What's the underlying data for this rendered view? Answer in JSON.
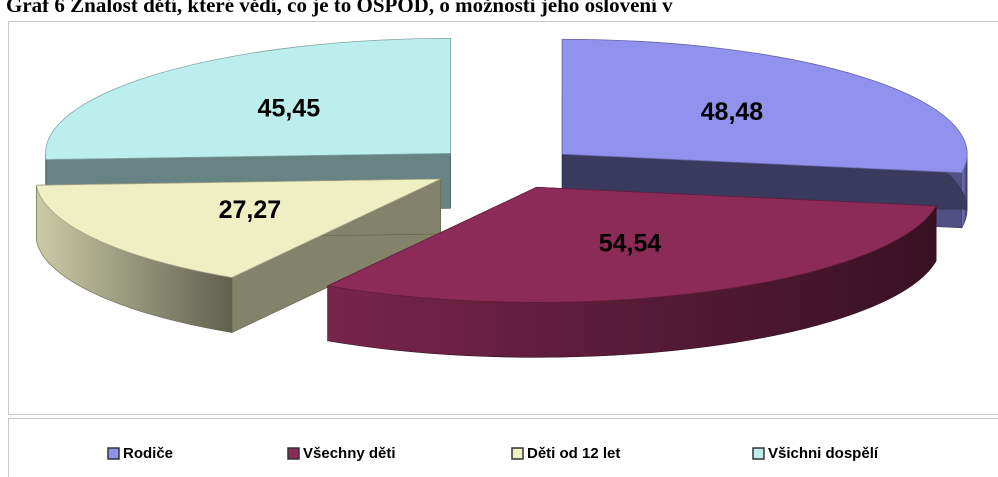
{
  "chart_data": {
    "type": "pie",
    "title": "Graf 6 Znalost dětí, které vědí, co je to OSPOD, o možnosti jeho oslovení v",
    "categories": [
      "Rodiče",
      "Všechny děti",
      "Děti od 12 let",
      "Všichni dospělí"
    ],
    "values": [
      48.48,
      54.54,
      27.27,
      45.45
    ],
    "value_labels": [
      "48,48",
      "54,54",
      "27,27",
      "45,45"
    ],
    "colors": [
      "#9191ee",
      "#8c2b57",
      "#efefc4",
      "#bdeeee"
    ],
    "legend": "bottom"
  }
}
